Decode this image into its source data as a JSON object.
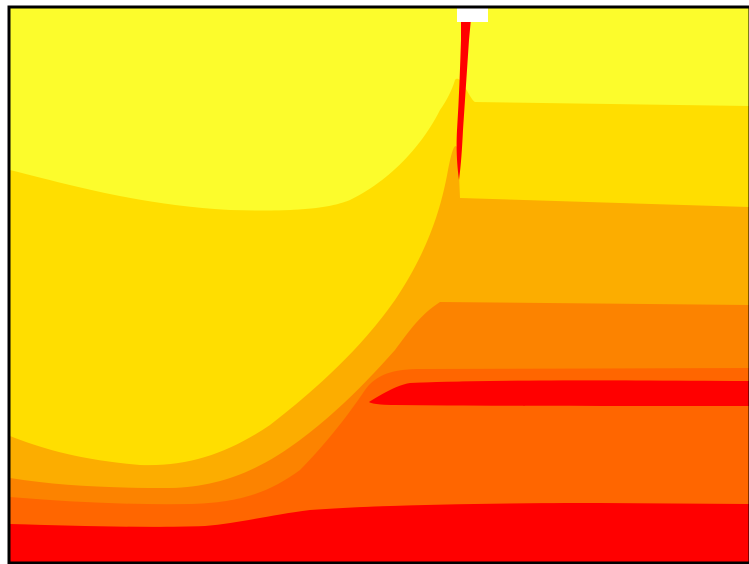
{
  "chart_data": {
    "type": "filled-contour",
    "title": "",
    "xlabel": "",
    "ylabel": "",
    "legend": "none",
    "grid": false,
    "axis_tick_labels_visible": false,
    "levels": [
      {
        "name": "level-1",
        "color": "#FCFC2C"
      },
      {
        "name": "level-2",
        "color": "#FFDE00"
      },
      {
        "name": "level-3",
        "color": "#FCAD00"
      },
      {
        "name": "level-4",
        "color": "#FC8300"
      },
      {
        "name": "level-5",
        "color": "#FF6600"
      },
      {
        "name": "level-6",
        "color": "#FF0000"
      }
    ],
    "features": [
      {
        "name": "vertical-red-plume",
        "color": "#FF0000"
      },
      {
        "name": "horizontal-red-lens",
        "color": "#FF0000"
      },
      {
        "name": "bottom-red-layer",
        "color": "#FF0000"
      }
    ]
  },
  "colors": {
    "frame": "#000000",
    "background": "#FFFFFF",
    "marker": "#FFFFFF"
  }
}
